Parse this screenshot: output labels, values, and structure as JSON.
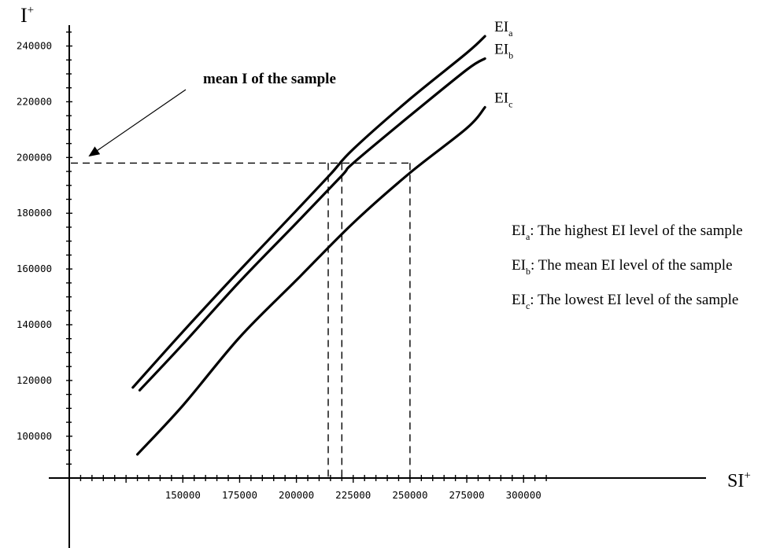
{
  "chart_data": {
    "type": "line",
    "ylabel_main": "I",
    "ylabel_sup": "+",
    "xlabel_main": "SI",
    "xlabel_sup": "+",
    "xlim": [
      100000,
      310000
    ],
    "ylim": [
      85000,
      245000
    ],
    "xticks": [
      150000,
      175000,
      200000,
      225000,
      250000,
      275000,
      300000
    ],
    "xtick_labels": [
      "150000",
      "175000",
      "200000",
      "225000",
      "250000",
      "275000",
      "300000"
    ],
    "yticks": [
      100000,
      120000,
      140000,
      160000,
      180000,
      200000,
      220000,
      240000
    ],
    "ytick_labels": [
      "100000",
      "120000",
      "140000",
      "160000",
      "180000",
      "200000",
      "220000",
      "240000"
    ],
    "grid": false,
    "series": [
      {
        "name": "EI",
        "sub": "a",
        "x": [
          128000,
          150000,
          175000,
          200000,
          215000,
          225000,
          250000,
          275000,
          283000
        ],
        "y": [
          117500,
          137500,
          159500,
          181000,
          194000,
          203000,
          221000,
          237500,
          243500
        ]
      },
      {
        "name": "EI",
        "sub": "b",
        "x": [
          131000,
          150000,
          175000,
          200000,
          220000,
          225000,
          250000,
          275000,
          283000
        ],
        "y": [
          116500,
          133000,
          155500,
          176500,
          193500,
          198000,
          215000,
          231500,
          235500
        ]
      },
      {
        "name": "EI",
        "sub": "c",
        "x": [
          130000,
          150000,
          175000,
          200000,
          225000,
          250000,
          275000,
          283000
        ],
        "y": [
          93500,
          111000,
          135500,
          156000,
          176500,
          194500,
          210500,
          218000
        ]
      }
    ],
    "reference": {
      "y": 198000,
      "x_values": [
        214000,
        220000,
        250000
      ]
    },
    "annotation": "mean I of the sample",
    "legend_text": [
      {
        "main": "EI",
        "sub": "a",
        "desc": ": The highest EI level of the sample"
      },
      {
        "main": "EI",
        "sub": "b",
        "desc": ": The mean EI level of the sample"
      },
      {
        "main": "EI",
        "sub": "c",
        "desc": ": The lowest EI level of the sample"
      }
    ]
  }
}
